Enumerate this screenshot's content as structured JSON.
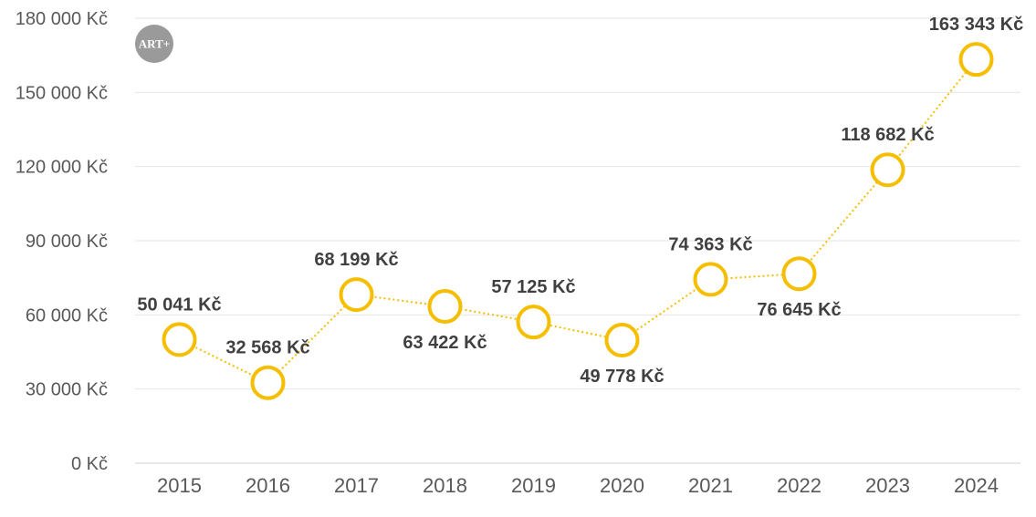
{
  "colors": {
    "accent": "#F5BE00",
    "grid": "#e6e6e6",
    "text": "#595959",
    "label": "#404040"
  },
  "logo": {
    "text": "ART+"
  },
  "chart_data": {
    "type": "line",
    "title": "",
    "xlabel": "",
    "ylabel": "",
    "ylim": [
      0,
      180000
    ],
    "yticks": [
      0,
      30000,
      60000,
      90000,
      120000,
      150000,
      180000
    ],
    "ytick_labels": [
      "0 Kč",
      "30 000 Kč",
      "60 000 Kč",
      "90 000 Kč",
      "120 000 Kč",
      "150 000 Kč",
      "180 000 Kč"
    ],
    "grid": true,
    "categories": [
      "2015",
      "2016",
      "2017",
      "2018",
      "2019",
      "2020",
      "2021",
      "2022",
      "2023",
      "2024"
    ],
    "series": [
      {
        "values": [
          50041,
          32568,
          68199,
          63422,
          57125,
          49778,
          74363,
          76645,
          118682,
          163343
        ],
        "labels": [
          "50 041 Kč",
          "32 568 Kč",
          "68 199 Kč",
          "63 422 Kč",
          "57 125 Kč",
          "49 778 Kč",
          "74 363 Kč",
          "76 645 Kč",
          "118 682 Kč",
          "163 343 Kč"
        ],
        "label_positions": [
          "above",
          "above",
          "above",
          "below",
          "above",
          "below",
          "above",
          "below",
          "above",
          "above"
        ]
      }
    ]
  }
}
